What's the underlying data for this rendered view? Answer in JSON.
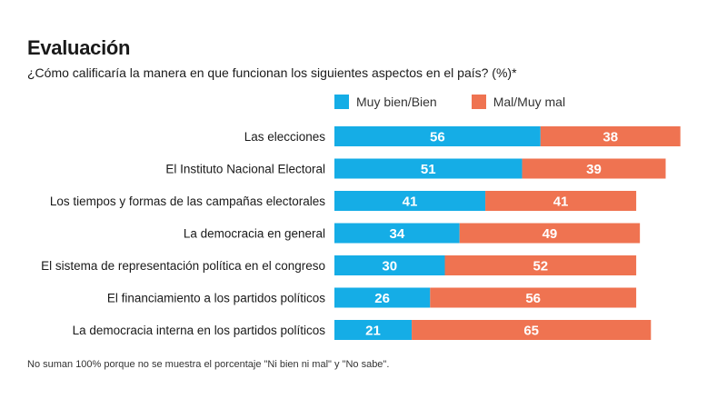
{
  "title": "Evaluación",
  "subtitle": "¿Cómo calificaría la manera en que funcionan los siguientes aspectos en el país? (%)*",
  "footnote": "No suman 100% porque no se muestra el porcentaje \"Ni bien ni mal\" y \"No sabe\".",
  "legend": [
    {
      "label": "Muy bien/Bien",
      "color": "#15ade6"
    },
    {
      "label": "Mal/Muy mal",
      "color": "#ef7351"
    }
  ],
  "chart_data": {
    "type": "bar",
    "orientation": "horizontal",
    "stacked": true,
    "categories": [
      "Las elecciones",
      "El Instituto Nacional Electoral",
      "Los tiempos y formas de las campañas electorales",
      "La democracia en general",
      "El sistema de representación política en el congreso",
      "El financiamiento a los partidos políticos",
      "La democracia interna en los partidos políticos"
    ],
    "series": [
      {
        "name": "Muy bien/Bien",
        "color": "#15ade6",
        "values": [
          56,
          51,
          41,
          34,
          30,
          26,
          21
        ]
      },
      {
        "name": "Mal/Muy mal",
        "color": "#ef7351",
        "values": [
          38,
          39,
          41,
          49,
          52,
          56,
          65
        ]
      }
    ],
    "xlim": [
      0,
      100
    ],
    "grid": false,
    "legend_position": "top"
  }
}
